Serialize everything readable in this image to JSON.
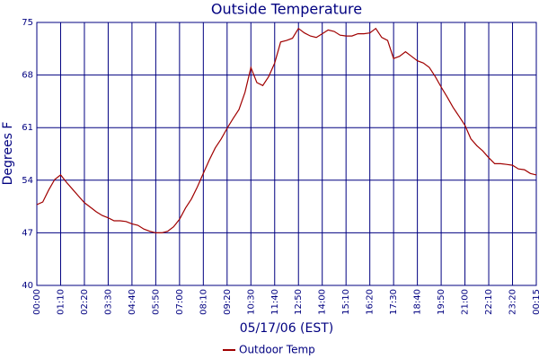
{
  "chart_data": {
    "type": "line",
    "title": "Outside Temperature",
    "x_label": "05/17/06 (EST)",
    "y_label": "Degrees F",
    "categories": [
      "00:00",
      null,
      null,
      null,
      "01:10",
      null,
      null,
      null,
      "02:20",
      null,
      null,
      null,
      "03:30",
      null,
      null,
      null,
      "04:40",
      null,
      null,
      null,
      "05:50",
      null,
      null,
      null,
      "07:00",
      null,
      null,
      null,
      "08:10",
      null,
      null,
      null,
      "09:20",
      null,
      null,
      null,
      "10:30",
      null,
      null,
      null,
      "11:40",
      null,
      null,
      null,
      "12:50",
      null,
      null,
      null,
      "14:00",
      null,
      null,
      null,
      "15:10",
      null,
      null,
      null,
      "16:20",
      null,
      null,
      null,
      "17:30",
      null,
      null,
      null,
      "18:40",
      null,
      null,
      null,
      "19:50",
      null,
      null,
      null,
      "21:00",
      null,
      null,
      null,
      "22:10",
      null,
      null,
      null,
      "23:20",
      null,
      null,
      null,
      "00:15"
    ],
    "series": [
      {
        "name": "Outdoor Temp",
        "color": "#a00000",
        "values": [
          50.75,
          51.1,
          52.7,
          54.1,
          54.7,
          53.7,
          52.8,
          51.9,
          51.0,
          50.4,
          49.8,
          49.3,
          49.0,
          48.6,
          48.6,
          48.5,
          48.2,
          48.0,
          47.5,
          47.2,
          47.0,
          47.0,
          47.2,
          47.8,
          48.8,
          50.3,
          51.5,
          53.1,
          54.9,
          56.7,
          58.3,
          59.5,
          60.9,
          62.2,
          63.4,
          65.7,
          69.0,
          67.0,
          66.6,
          67.8,
          69.6,
          72.4,
          72.6,
          72.9,
          74.2,
          73.6,
          73.2,
          73.0,
          73.5,
          74.0,
          73.8,
          73.3,
          73.2,
          73.2,
          73.5,
          73.5,
          73.6,
          74.2,
          73.0,
          72.6,
          70.2,
          70.5,
          71.1,
          70.5,
          69.9,
          69.6,
          69.0,
          67.8,
          66.4,
          65.1,
          63.7,
          62.5,
          61.3,
          59.5,
          58.6,
          57.9,
          57.0,
          56.2,
          56.2,
          56.1,
          56.0,
          55.5,
          55.4,
          54.9,
          54.7
        ]
      }
    ],
    "ylim": [
      40,
      75
    ],
    "yticks": [
      40,
      47,
      54,
      61,
      68,
      75
    ],
    "grid": true,
    "grid_color": "#000080",
    "legend": "bottom"
  }
}
